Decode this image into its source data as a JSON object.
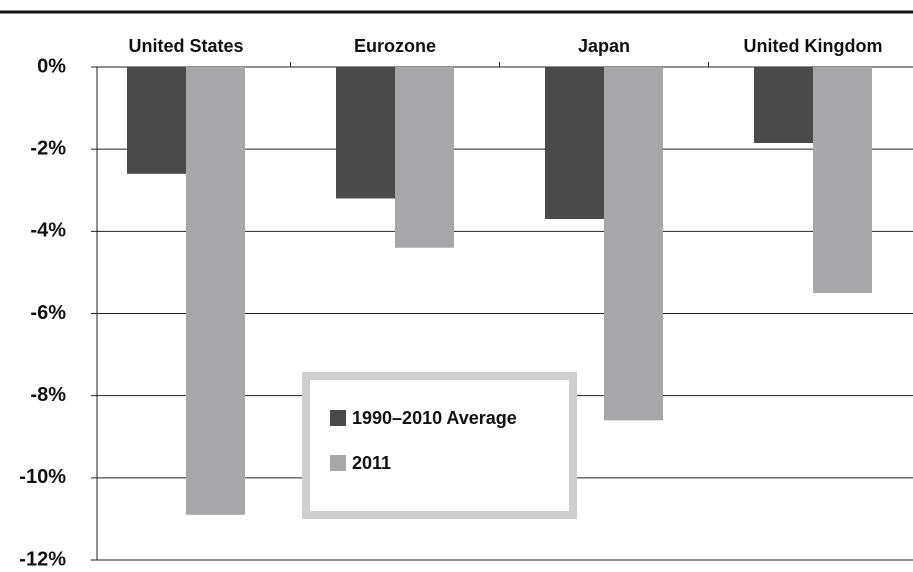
{
  "chart_data": {
    "type": "bar",
    "categories": [
      "United States",
      "Eurozone",
      "Japan",
      "United Kingdom"
    ],
    "series": [
      {
        "name": "1990–2010 Average",
        "color": "#4a4a4a",
        "values": [
          -2.6,
          -3.2,
          -3.7,
          -1.85
        ]
      },
      {
        "name": "2011",
        "color": "#a7a7a9",
        "values": [
          -10.9,
          -4.4,
          -8.6,
          -5.5
        ]
      }
    ],
    "ylim": [
      0,
      -12
    ],
    "yticks": [
      {
        "value": 0,
        "label": "0%"
      },
      {
        "value": -2,
        "label": "-2%"
      },
      {
        "value": -4,
        "label": "-4%"
      },
      {
        "value": -6,
        "label": "-6%"
      },
      {
        "value": -8,
        "label": "-8%"
      },
      {
        "value": -10,
        "label": "-10%"
      },
      {
        "value": -12,
        "label": "-12%"
      }
    ],
    "grid": true
  }
}
